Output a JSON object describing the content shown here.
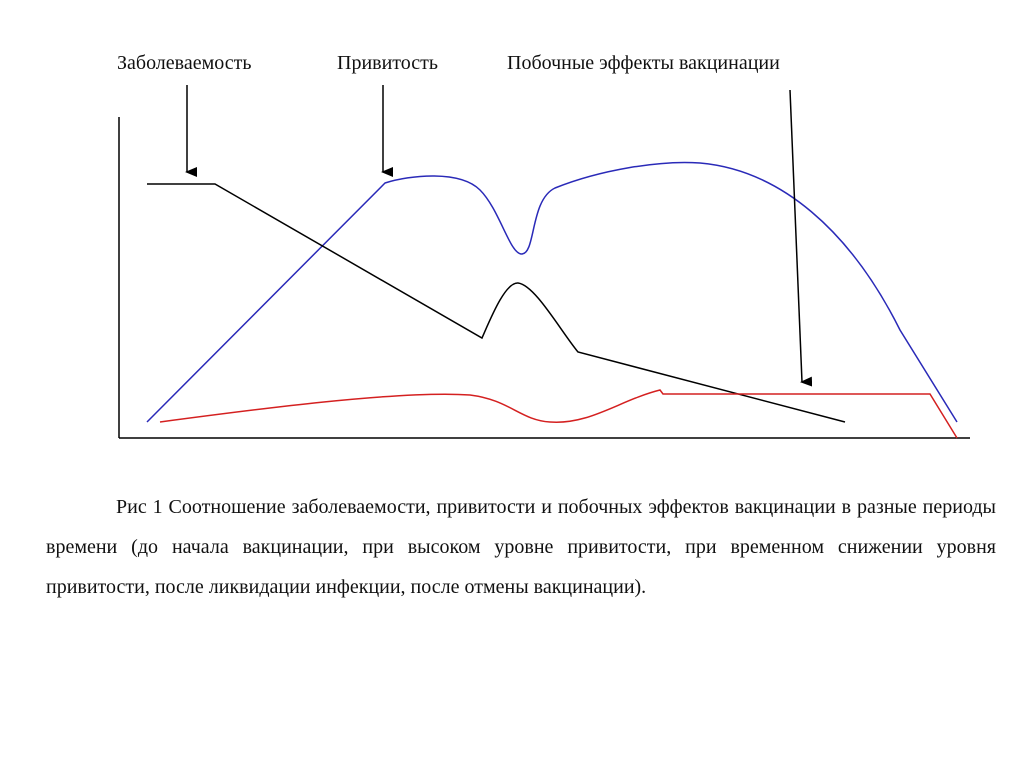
{
  "labels": {
    "incidence": "Заболеваемость",
    "vaccination_coverage": "Привитость",
    "side_effects": "Побочные эффекты вакцинации"
  },
  "colors": {
    "incidence": "#000000",
    "vaccination_coverage": "#2a2ab8",
    "side_effects": "#d42020"
  },
  "caption": "Рис 1  Соотношение заболеваемости, привитости и побочных эффектов вакцинации в разные периоды времени (до начала вакцинации, при высоком уровне привитости, при временном снижении уровня привитости, после ликвидации инфекции, после отмены вакцинации)."
}
